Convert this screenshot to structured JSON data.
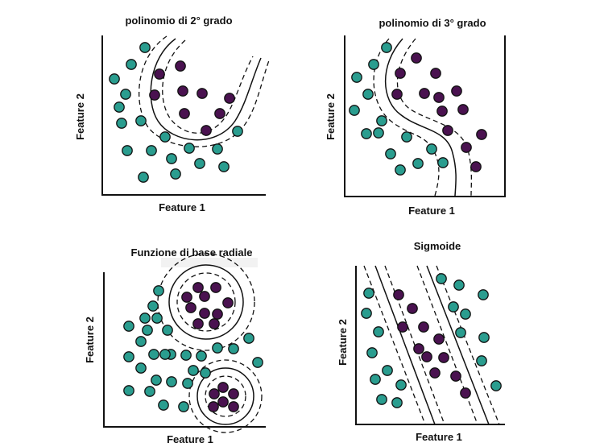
{
  "colors": {
    "teal": "#2a9d8f",
    "purple": "#4a1250",
    "outline": "#111111"
  },
  "panels": [
    {
      "title": "polinomio di 2° grado",
      "xlabel": "Feature 1",
      "ylabel": "Feature 2"
    },
    {
      "title": "polinomio di 3° grado",
      "xlabel": "Feature 1",
      "ylabel": "Feature 2"
    },
    {
      "title": "Funzione di base radiale",
      "xlabel": "Feature 1",
      "ylabel": "Feature 2"
    },
    {
      "title": "Sigmoide",
      "xlabel": "Feature 1",
      "ylabel": "Feature 2"
    }
  ]
}
